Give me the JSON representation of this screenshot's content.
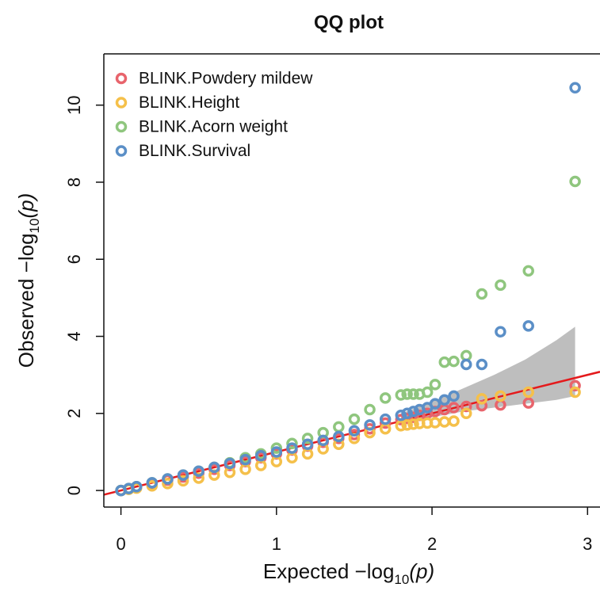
{
  "chart_data": {
    "type": "scatter",
    "title": "QQ plot",
    "xlabel": {
      "text": "Expected  −log",
      "subscript": "10",
      "suffix": "(p)"
    },
    "ylabel": {
      "text": "Observed  −log",
      "subscript": "10",
      "suffix": "(p)"
    },
    "xlim": [
      -0.11,
      3.08
    ],
    "ylim": [
      -0.43,
      11.33
    ],
    "xticks": [
      0,
      1,
      2,
      3
    ],
    "yticks": [
      0,
      2,
      4,
      6,
      8,
      10
    ],
    "legend": "top-left",
    "reference_line": {
      "slope": 1,
      "intercept": 0,
      "color": "#e41a1c"
    },
    "band": {
      "color": "#bebebe",
      "x": [
        1.8,
        2.0,
        2.2,
        2.4,
        2.6,
        2.8,
        2.92
      ],
      "lower": [
        1.75,
        1.9,
        2.05,
        2.15,
        2.25,
        2.35,
        2.45
      ],
      "upper": [
        2.0,
        2.3,
        2.65,
        3.0,
        3.4,
        3.9,
        4.25
      ]
    },
    "x": [
      2.92,
      2.62,
      2.44,
      2.32,
      2.22,
      2.14,
      2.08,
      2.02,
      1.97,
      1.92,
      1.88,
      1.84,
      1.8,
      1.7,
      1.6,
      1.5,
      1.4,
      1.3,
      1.2,
      1.1,
      1.0,
      0.9,
      0.8,
      0.7,
      0.6,
      0.5,
      0.4,
      0.3,
      0.2,
      0.1,
      0.05,
      0
    ],
    "series": [
      {
        "name": "BLINK.Powdery mildew",
        "color": "#e8646c",
        "values": [
          2.72,
          2.27,
          2.22,
          2.2,
          2.18,
          2.15,
          2.1,
          2.05,
          2.0,
          1.95,
          1.9,
          1.87,
          1.84,
          1.75,
          1.6,
          1.45,
          1.35,
          1.25,
          1.15,
          1.05,
          0.95,
          0.85,
          0.75,
          0.65,
          0.55,
          0.45,
          0.35,
          0.27,
          0.18,
          0.09,
          0.04,
          0
        ]
      },
      {
        "name": "BLINK.Height",
        "color": "#f5c04a",
        "values": [
          2.55,
          2.55,
          2.45,
          2.38,
          2.0,
          1.8,
          1.78,
          1.76,
          1.75,
          1.74,
          1.72,
          1.7,
          1.68,
          1.6,
          1.5,
          1.35,
          1.2,
          1.08,
          0.95,
          0.85,
          0.75,
          0.65,
          0.55,
          0.47,
          0.4,
          0.32,
          0.25,
          0.18,
          0.12,
          0.06,
          0.03,
          0
        ]
      },
      {
        "name": "BLINK.Acorn weight",
        "color": "#8fc67e",
        "values": [
          8.02,
          5.7,
          5.33,
          5.1,
          3.5,
          3.35,
          3.33,
          2.75,
          2.55,
          2.5,
          2.5,
          2.5,
          2.48,
          2.4,
          2.1,
          1.85,
          1.65,
          1.5,
          1.35,
          1.22,
          1.1,
          0.95,
          0.85,
          0.72,
          0.6,
          0.5,
          0.4,
          0.3,
          0.2,
          0.1,
          0.05,
          0
        ]
      },
      {
        "name": "BLINK.Survival",
        "color": "#5b8fc7",
        "values": [
          10.45,
          4.27,
          4.12,
          3.27,
          3.27,
          2.45,
          2.35,
          2.25,
          2.15,
          2.1,
          2.05,
          2.0,
          1.95,
          1.85,
          1.7,
          1.55,
          1.4,
          1.3,
          1.2,
          1.1,
          1.0,
          0.9,
          0.8,
          0.7,
          0.6,
          0.5,
          0.4,
          0.3,
          0.2,
          0.1,
          0.05,
          0
        ]
      }
    ]
  }
}
